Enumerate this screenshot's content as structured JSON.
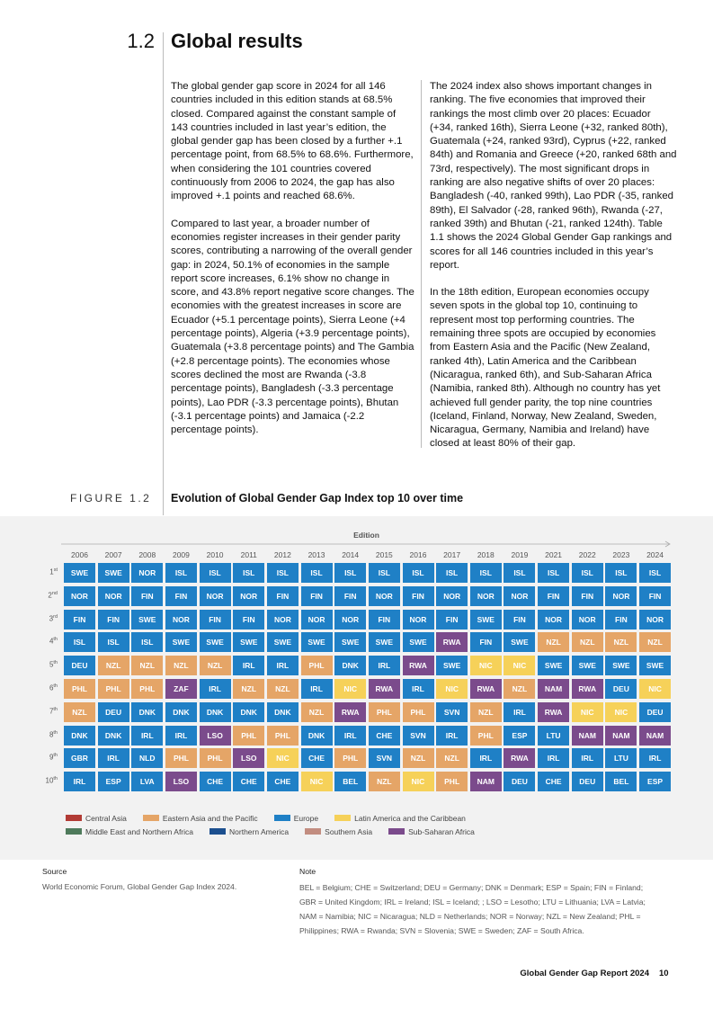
{
  "header": {
    "section_number": "1.2",
    "section_title": "Global results"
  },
  "body": {
    "left": [
      "The global gender gap score in 2024 for all 146 countries included in this edition stands at 68.5% closed. Compared against the constant sample of 143 countries included in last year’s edition, the global gender gap has been closed by a further +.1 percentage point, from 68.5% to 68.6%. Furthermore, when considering the 101 countries covered continuously from 2006 to 2024, the gap has also improved +.1 points and reached 68.6%.",
      "Compared to last year, a broader number of economies register increases in their gender parity scores, contributing a narrowing of the overall gender gap: in 2024, 50.1% of economies in the sample report score increases, 6.1% show no change in score, and 43.8% report negative score changes. The economies with the greatest increases in score are Ecuador (+5.1 percentage points), Sierra Leone (+4 percentage points), Algeria (+3.9 percentage points), Guatemala (+3.8 percentage points) and The Gambia (+2.8 percentage points). The economies whose scores declined the most are Rwanda (-3.8 percentage points), Bangladesh (-3.3 percentage points), Lao PDR (-3.3 percentage points), Bhutan (-3.1 percentage points) and Jamaica (-2.2 percentage points)."
    ],
    "right": [
      "The 2024 index also shows important changes in ranking. The five economies that improved their rankings the most climb over 20 places: Ecuador (+34, ranked 16th), Sierra Leone (+32, ranked 80th), Guatemala (+24, ranked 93rd), Cyprus (+22, ranked 84th) and Romania and Greece (+20, ranked 68th and 73rd, respectively). The most significant drops in ranking are also negative shifts of over 20 places: Bangladesh (-40, ranked 99th), Lao PDR (-35, ranked 89th), El Salvador (-28, ranked 96th), Rwanda (-27, ranked 39th) and Bhutan (-21, ranked 124th). Table 1.1 shows the 2024 Global Gender Gap rankings and scores for all 146 countries included in this year’s report.",
      "In the 18th edition, European economies occupy seven spots in the global top 10, continuing to represent most top performing countries. The remaining three spots are occupied by economies from Eastern Asia and the Pacific (New Zealand, ranked 4th), Latin America and the Caribbean (Nicaragua, ranked 6th), and Sub-Saharan Africa (Namibia, ranked 8th). Although no country has yet achieved full gender parity, the top nine countries (Iceland, Finland, Norway, New Zealand, Sweden, Nicaragua, Germany, Namibia and Ireland) have closed at least 80% of their gap."
    ]
  },
  "figure": {
    "label": "FIGURE 1.2",
    "title": "Evolution of Global Gender Gap Index top 10 over time",
    "axis_title": "Edition",
    "years": [
      2006,
      2007,
      2008,
      2009,
      2010,
      2011,
      2012,
      2013,
      2014,
      2015,
      2016,
      2017,
      2018,
      2019,
      2021,
      2022,
      2023,
      2024
    ],
    "ranks": [
      {
        "n": "1",
        "suffix": "st"
      },
      {
        "n": "2",
        "suffix": "nd"
      },
      {
        "n": "3",
        "suffix": "rd"
      },
      {
        "n": "4",
        "suffix": "th"
      },
      {
        "n": "5",
        "suffix": "th"
      },
      {
        "n": "6",
        "suffix": "th"
      },
      {
        "n": "7",
        "suffix": "th"
      },
      {
        "n": "8",
        "suffix": "th"
      },
      {
        "n": "9",
        "suffix": "th"
      },
      {
        "n": "10",
        "suffix": "th"
      }
    ],
    "cells": [
      [
        "SWE",
        "SWE",
        "NOR",
        "ISL",
        "ISL",
        "ISL",
        "ISL",
        "ISL",
        "ISL",
        "ISL",
        "ISL",
        "ISL",
        "ISL",
        "ISL",
        "ISL",
        "ISL",
        "ISL",
        "ISL"
      ],
      [
        "NOR",
        "NOR",
        "FIN",
        "FIN",
        "NOR",
        "NOR",
        "FIN",
        "FIN",
        "FIN",
        "NOR",
        "FIN",
        "NOR",
        "NOR",
        "NOR",
        "FIN",
        "FIN",
        "NOR",
        "FIN"
      ],
      [
        "FIN",
        "FIN",
        "SWE",
        "NOR",
        "FIN",
        "FIN",
        "NOR",
        "NOR",
        "NOR",
        "FIN",
        "NOR",
        "FIN",
        "SWE",
        "FIN",
        "NOR",
        "NOR",
        "FIN",
        "NOR"
      ],
      [
        "ISL",
        "ISL",
        "ISL",
        "SWE",
        "SWE",
        "SWE",
        "SWE",
        "SWE",
        "SWE",
        "SWE",
        "SWE",
        "RWA",
        "FIN",
        "SWE",
        "NZL",
        "NZL",
        "NZL",
        "NZL"
      ],
      [
        "DEU",
        "NZL",
        "NZL",
        "NZL",
        "NZL",
        "IRL",
        "IRL",
        "PHL",
        "DNK",
        "IRL",
        "RWA",
        "SWE",
        "NIC",
        "NIC",
        "SWE",
        "SWE",
        "SWE",
        "SWE"
      ],
      [
        "PHL",
        "PHL",
        "PHL",
        "ZAF",
        "IRL",
        "NZL",
        "NZL",
        "IRL",
        "NIC",
        "RWA",
        "IRL",
        "NIC",
        "RWA",
        "NZL",
        "NAM",
        "RWA",
        "DEU",
        "NIC"
      ],
      [
        "NZL",
        "DEU",
        "DNK",
        "DNK",
        "DNK",
        "DNK",
        "DNK",
        "NZL",
        "RWA",
        "PHL",
        "PHL",
        "SVN",
        "NZL",
        "IRL",
        "RWA",
        "NIC",
        "NIC",
        "DEU"
      ],
      [
        "DNK",
        "DNK",
        "IRL",
        "IRL",
        "LSO",
        "PHL",
        "PHL",
        "DNK",
        "IRL",
        "CHE",
        "SVN",
        "IRL",
        "PHL",
        "ESP",
        "LTU",
        "NAM",
        "NAM",
        "NAM"
      ],
      [
        "GBR",
        "IRL",
        "NLD",
        "PHL",
        "PHL",
        "LSO",
        "NIC",
        "CHE",
        "PHL",
        "SVN",
        "NZL",
        "NZL",
        "IRL",
        "RWA",
        "IRL",
        "IRL",
        "LTU",
        "IRL"
      ],
      [
        "IRL",
        "ESP",
        "LVA",
        "LSO",
        "CHE",
        "CHE",
        "CHE",
        "NIC",
        "BEL",
        "NZL",
        "NIC",
        "PHL",
        "NAM",
        "DEU",
        "CHE",
        "DEU",
        "BEL",
        "ESP"
      ]
    ],
    "legend": [
      {
        "name": "Central Asia",
        "color": "#b23b35",
        "codes": []
      },
      {
        "name": "Eastern Asia and the Pacific",
        "color": "#e5a567",
        "codes": [
          "NZL",
          "PHL"
        ]
      },
      {
        "name": "Europe",
        "color": "#1f80c6",
        "codes": [
          "SWE",
          "NOR",
          "FIN",
          "ISL",
          "DEU",
          "DNK",
          "IRL",
          "GBR",
          "ESP",
          "LVA",
          "LTU",
          "CHE",
          "BEL",
          "SVN",
          "NLD"
        ]
      },
      {
        "name": "Latin America and the Caribbean",
        "color": "#f6d159",
        "codes": [
          "NIC"
        ]
      },
      {
        "name": "Middle East and Northern Africa",
        "color": "#4e7a5b",
        "codes": []
      },
      {
        "name": "Northern America",
        "color": "#1c4f8f",
        "codes": []
      },
      {
        "name": "Southern Asia",
        "color": "#c28d80",
        "codes": []
      },
      {
        "name": "Sub-Saharan Africa",
        "color": "#7b4b8c",
        "codes": [
          "ZAF",
          "LSO",
          "RWA",
          "NAM"
        ]
      }
    ]
  },
  "source": {
    "heading": "Source",
    "text": "World Economic Forum, Global Gender Gap Index 2024."
  },
  "note": {
    "heading": "Note",
    "text": "BEL = Belgium; CHE = Switzerland; DEU = Germany; DNK = Denmark; ESP = Spain; FIN = Finland; GBR = United Kingdom; IRL = Ireland; ISL = Iceland; ; LSO = Lesotho; LTU = Lithuania; LVA = Latvia; NAM = Namibia; NIC = Nicaragua; NLD = Netherlands; NOR = Norway; NZL = New Zealand; PHL = Philippines; RWA = Rwanda; SVN = Slovenia; SWE = Sweden; ZAF = South Africa."
  },
  "footer": {
    "report": "Global Gender Gap Report 2024",
    "page": "10"
  }
}
